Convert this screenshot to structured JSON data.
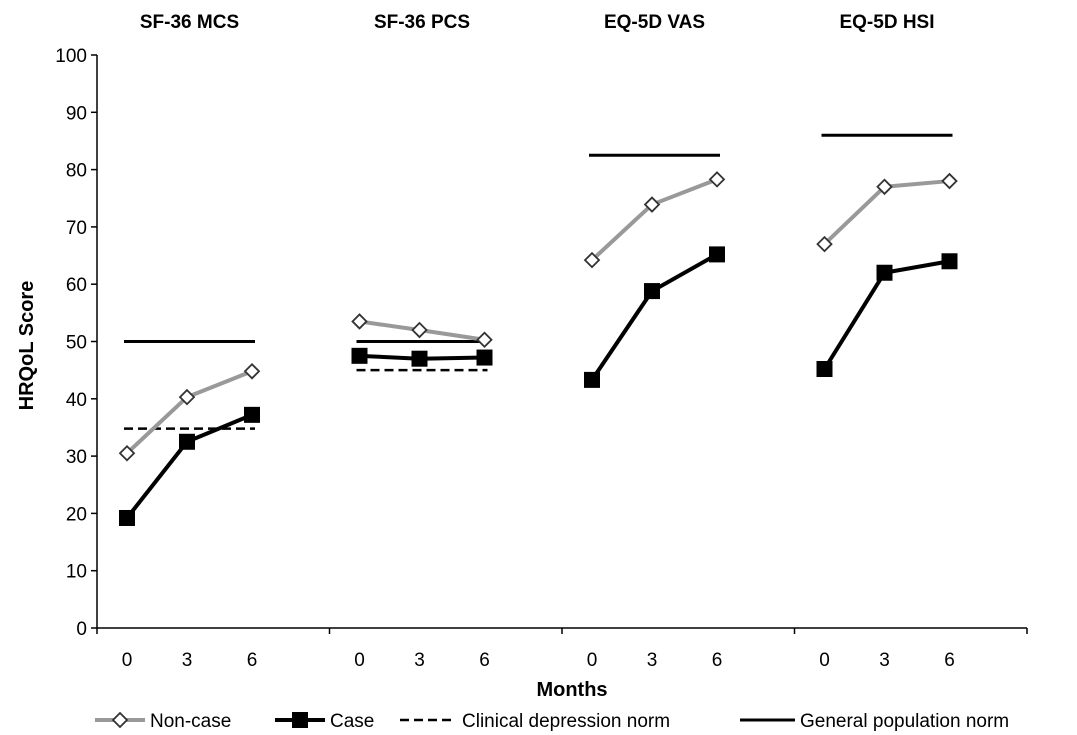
{
  "chart_data": {
    "type": "line",
    "ylabel": "HRQoL Score",
    "xlabel": "Months",
    "ylim": [
      0,
      100
    ],
    "yticks": [
      "0",
      "10",
      "20",
      "30",
      "40",
      "50",
      "60",
      "70",
      "80",
      "90",
      "100"
    ],
    "x": [
      "0",
      "3",
      "6"
    ],
    "grid": false,
    "legend_position": "bottom",
    "legend": [
      "Non-case",
      "Case",
      "Clinical depression norm",
      "General population norm"
    ],
    "colors": {
      "non_case": "#999999",
      "case": "#000000",
      "norm": "#000000"
    },
    "panels": [
      {
        "title": "SF-36 MCS",
        "series": [
          {
            "name": "Non-case",
            "values": [
              30.5,
              40.3,
              44.8
            ]
          },
          {
            "name": "Case",
            "values": [
              19.2,
              32.5,
              37.2
            ]
          }
        ],
        "clinical_depression_norm": 34.8,
        "general_population_norm": 50
      },
      {
        "title": "SF-36 PCS",
        "series": [
          {
            "name": "Non-case",
            "values": [
              53.5,
              52.0,
              50.3
            ]
          },
          {
            "name": "Case",
            "values": [
              47.5,
              47.0,
              47.2
            ]
          }
        ],
        "clinical_depression_norm": 45,
        "general_population_norm": 50
      },
      {
        "title": "EQ-5D VAS",
        "series": [
          {
            "name": "Non-case",
            "values": [
              64.2,
              73.9,
              78.3
            ]
          },
          {
            "name": "Case",
            "values": [
              43.3,
              58.8,
              65.2
            ]
          }
        ],
        "general_population_norm": 82.5
      },
      {
        "title": "EQ-5D HSI",
        "series": [
          {
            "name": "Non-case",
            "values": [
              67.0,
              77.0,
              78.0
            ]
          },
          {
            "name": "Case",
            "values": [
              45.2,
              62.0,
              64.0
            ]
          }
        ],
        "general_population_norm": 86
      }
    ]
  }
}
